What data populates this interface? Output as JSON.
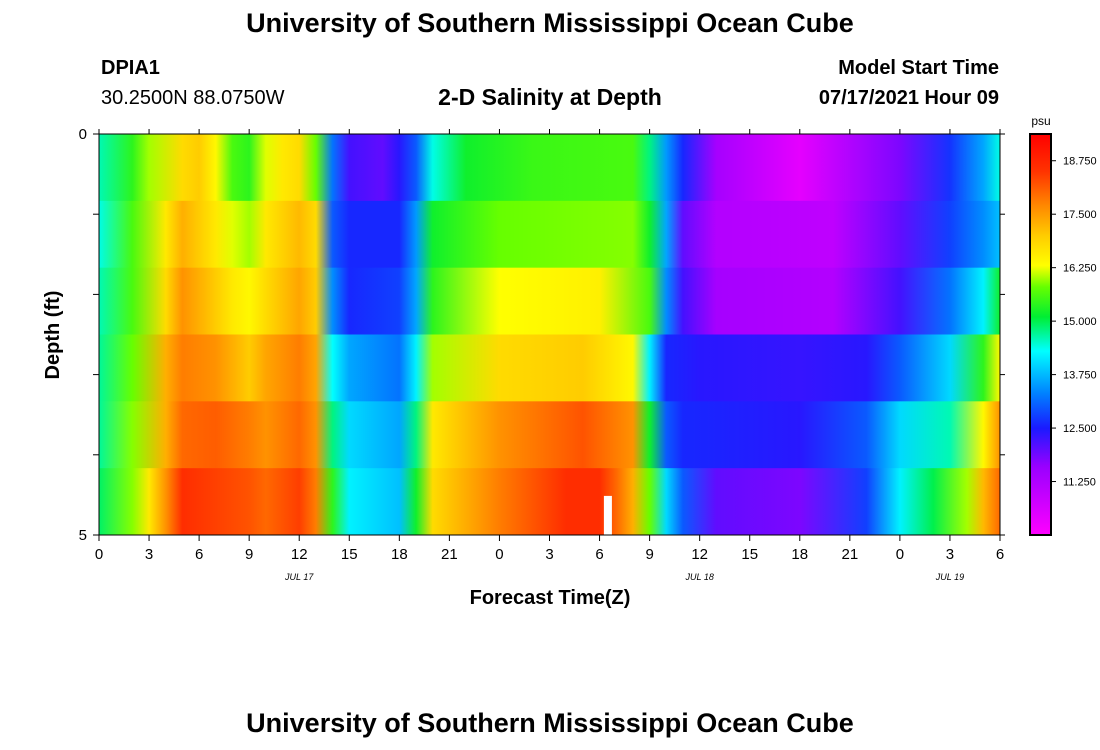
{
  "header": {
    "title": "University of Southern Mississippi Ocean Cube",
    "station": "DPIA1",
    "coords": "30.2500N  88.0750W",
    "subtitle": "2-D Salinity at Depth",
    "model_label": "Model Start Time",
    "model_time": "07/17/2021 Hour 09"
  },
  "footer": {
    "title": "University of Southern Mississippi Ocean Cube"
  },
  "chart_data": {
    "type": "heatmap",
    "title": "2-D Salinity at Depth",
    "xlabel": "Forecast Time(Z)",
    "ylabel": "Depth (ft)",
    "x_range_hours": [
      0,
      54
    ],
    "x_tick_labels": [
      "0",
      "3",
      "6",
      "9",
      "12",
      "15",
      "18",
      "21",
      "0",
      "3",
      "6",
      "9",
      "12",
      "15",
      "18",
      "21",
      "0",
      "3",
      "6"
    ],
    "day_labels": [
      {
        "text": "JUL 17",
        "hour": 12
      },
      {
        "text": "JUL 18",
        "hour": 36
      },
      {
        "text": "JUL 19",
        "hour": 51
      }
    ],
    "y_range": [
      0,
      5
    ],
    "y_tick_labels": [
      "0",
      "5"
    ],
    "layers": [
      {
        "depth": 0,
        "values": [
          [
            0,
            14.6
          ],
          [
            2,
            15.4
          ],
          [
            3,
            16.0
          ],
          [
            5,
            16.8
          ],
          [
            6,
            17.0
          ],
          [
            7,
            16.4
          ],
          [
            8,
            15.6
          ],
          [
            9,
            15.4
          ],
          [
            10,
            16.2
          ],
          [
            11,
            16.6
          ],
          [
            12,
            16.8
          ],
          [
            13,
            15.8
          ],
          [
            14,
            13.2
          ],
          [
            15,
            12.2
          ],
          [
            17,
            12.0
          ],
          [
            18,
            12.4
          ],
          [
            19,
            13.0
          ],
          [
            20,
            14.4
          ],
          [
            22,
            15.2
          ],
          [
            26,
            15.5
          ],
          [
            32,
            15.6
          ],
          [
            33,
            14.8
          ],
          [
            34,
            13.5
          ],
          [
            35,
            12.6
          ],
          [
            37,
            11.4
          ],
          [
            42,
            10.4
          ],
          [
            48,
            11.8
          ],
          [
            51,
            12.7
          ],
          [
            53,
            13.6
          ],
          [
            54,
            14.4
          ]
        ]
      },
      {
        "depth": 1,
        "values": [
          [
            0,
            14.4
          ],
          [
            2,
            15.6
          ],
          [
            4,
            16.6
          ],
          [
            5,
            17.3
          ],
          [
            7,
            16.6
          ],
          [
            8,
            16.2
          ],
          [
            9,
            16.0
          ],
          [
            10,
            16.6
          ],
          [
            12,
            17.2
          ],
          [
            13,
            16.8
          ],
          [
            14,
            13.0
          ],
          [
            15,
            12.6
          ],
          [
            18,
            12.6
          ],
          [
            19,
            13.5
          ],
          [
            20,
            15.2
          ],
          [
            24,
            15.8
          ],
          [
            32,
            15.9
          ],
          [
            33,
            15.2
          ],
          [
            34,
            13.6
          ],
          [
            35,
            12.0
          ],
          [
            37,
            11.2
          ],
          [
            44,
            11.0
          ],
          [
            48,
            12.0
          ],
          [
            51,
            12.8
          ],
          [
            53,
            13.4
          ],
          [
            54,
            13.8
          ]
        ]
      },
      {
        "depth": 2,
        "values": [
          [
            0,
            14.6
          ],
          [
            2,
            15.6
          ],
          [
            4,
            16.8
          ],
          [
            5,
            17.6
          ],
          [
            7,
            17.0
          ],
          [
            8,
            16.6
          ],
          [
            9,
            16.4
          ],
          [
            10,
            16.8
          ],
          [
            12,
            17.4
          ],
          [
            13,
            17.0
          ],
          [
            14,
            13.4
          ],
          [
            15,
            12.6
          ],
          [
            18,
            12.8
          ],
          [
            19,
            13.6
          ],
          [
            20,
            15.4
          ],
          [
            24,
            16.3
          ],
          [
            30,
            16.5
          ],
          [
            33,
            15.6
          ],
          [
            34,
            13.4
          ],
          [
            35,
            12.2
          ],
          [
            37,
            11.4
          ],
          [
            44,
            11.2
          ],
          [
            48,
            12.2
          ],
          [
            51,
            13.2
          ],
          [
            53,
            14.2
          ],
          [
            54,
            15.2
          ]
        ]
      },
      {
        "depth": 3,
        "values": [
          [
            0,
            14.7
          ],
          [
            2,
            15.8
          ],
          [
            4,
            17.3
          ],
          [
            5,
            17.8
          ],
          [
            7,
            17.6
          ],
          [
            8,
            17.3
          ],
          [
            9,
            17.0
          ],
          [
            10,
            17.4
          ],
          [
            12,
            17.8
          ],
          [
            13,
            17.4
          ],
          [
            14,
            14.3
          ],
          [
            15,
            13.6
          ],
          [
            18,
            13.2
          ],
          [
            19,
            14.2
          ],
          [
            20,
            16.0
          ],
          [
            24,
            16.8
          ],
          [
            29,
            17.0
          ],
          [
            32,
            16.4
          ],
          [
            33,
            14.2
          ],
          [
            34,
            12.6
          ],
          [
            36,
            12.4
          ],
          [
            42,
            12.3
          ],
          [
            46,
            12.4
          ],
          [
            48,
            13.0
          ],
          [
            51,
            14.0
          ],
          [
            53,
            15.4
          ],
          [
            54,
            16.4
          ]
        ]
      },
      {
        "depth": 4,
        "values": [
          [
            0,
            14.7
          ],
          [
            2,
            15.9
          ],
          [
            4,
            17.3
          ],
          [
            5,
            18.0
          ],
          [
            7,
            18.1
          ],
          [
            9,
            17.8
          ],
          [
            10,
            17.6
          ],
          [
            12,
            18.0
          ],
          [
            13,
            17.6
          ],
          [
            14,
            14.8
          ],
          [
            15,
            14.0
          ],
          [
            18,
            13.6
          ],
          [
            19,
            14.8
          ],
          [
            20,
            16.6
          ],
          [
            24,
            17.6
          ],
          [
            29,
            18.2
          ],
          [
            32,
            17.6
          ],
          [
            33,
            15.2
          ],
          [
            34,
            13.0
          ],
          [
            35,
            12.6
          ],
          [
            42,
            12.4
          ],
          [
            46,
            13.0
          ],
          [
            48,
            14.0
          ],
          [
            51,
            14.6
          ],
          [
            53,
            16.4
          ],
          [
            54,
            17.6
          ]
        ]
      },
      {
        "depth": 5,
        "values": [
          [
            0,
            14.9
          ],
          [
            2,
            15.9
          ],
          [
            3,
            16.6
          ],
          [
            4,
            17.6
          ],
          [
            5,
            18.6
          ],
          [
            9,
            18.2
          ],
          [
            10,
            18.0
          ],
          [
            12,
            18.4
          ],
          [
            13,
            17.8
          ],
          [
            14,
            15.4
          ],
          [
            15,
            14.2
          ],
          [
            18,
            13.8
          ],
          [
            19,
            15.2
          ],
          [
            20,
            16.8
          ],
          [
            24,
            17.8
          ],
          [
            28,
            18.6
          ],
          [
            30,
            18.6
          ],
          [
            31,
            18.0
          ],
          [
            32,
            17.3
          ],
          [
            33,
            15.8
          ],
          [
            34,
            14.0
          ],
          [
            35,
            13.0
          ],
          [
            37,
            12.0
          ],
          [
            42,
            11.8
          ],
          [
            46,
            12.8
          ],
          [
            48,
            14.2
          ],
          [
            50,
            15.0
          ],
          [
            52,
            16.0
          ],
          [
            53,
            17.2
          ],
          [
            54,
            18.0
          ]
        ]
      }
    ],
    "gap_marker": {
      "hour": 30.5,
      "depth_from": 4.5,
      "depth_to": 5
    },
    "colorbar": {
      "unit": "psu",
      "range": [
        10.0,
        19.375
      ],
      "tick_labels": [
        "18.750",
        "17.500",
        "16.250",
        "15.000",
        "13.750",
        "12.500",
        "11.250"
      ],
      "tick_values": [
        18.75,
        17.5,
        16.25,
        15.0,
        13.75,
        12.5,
        11.25
      ],
      "stops": [
        {
          "value": 10.0,
          "color": "#ff00ff"
        },
        {
          "value": 11.6,
          "color": "#9900ff"
        },
        {
          "value": 12.5,
          "color": "#1a1aff"
        },
        {
          "value": 13.3,
          "color": "#0080ff"
        },
        {
          "value": 14.3,
          "color": "#00ffff"
        },
        {
          "value": 15.1,
          "color": "#00ee33"
        },
        {
          "value": 15.8,
          "color": "#66ff00"
        },
        {
          "value": 16.3,
          "color": "#ffff00"
        },
        {
          "value": 17.0,
          "color": "#ffcc00"
        },
        {
          "value": 17.7,
          "color": "#ff8800"
        },
        {
          "value": 18.5,
          "color": "#ff3300"
        },
        {
          "value": 19.375,
          "color": "#ff0000"
        }
      ]
    }
  }
}
